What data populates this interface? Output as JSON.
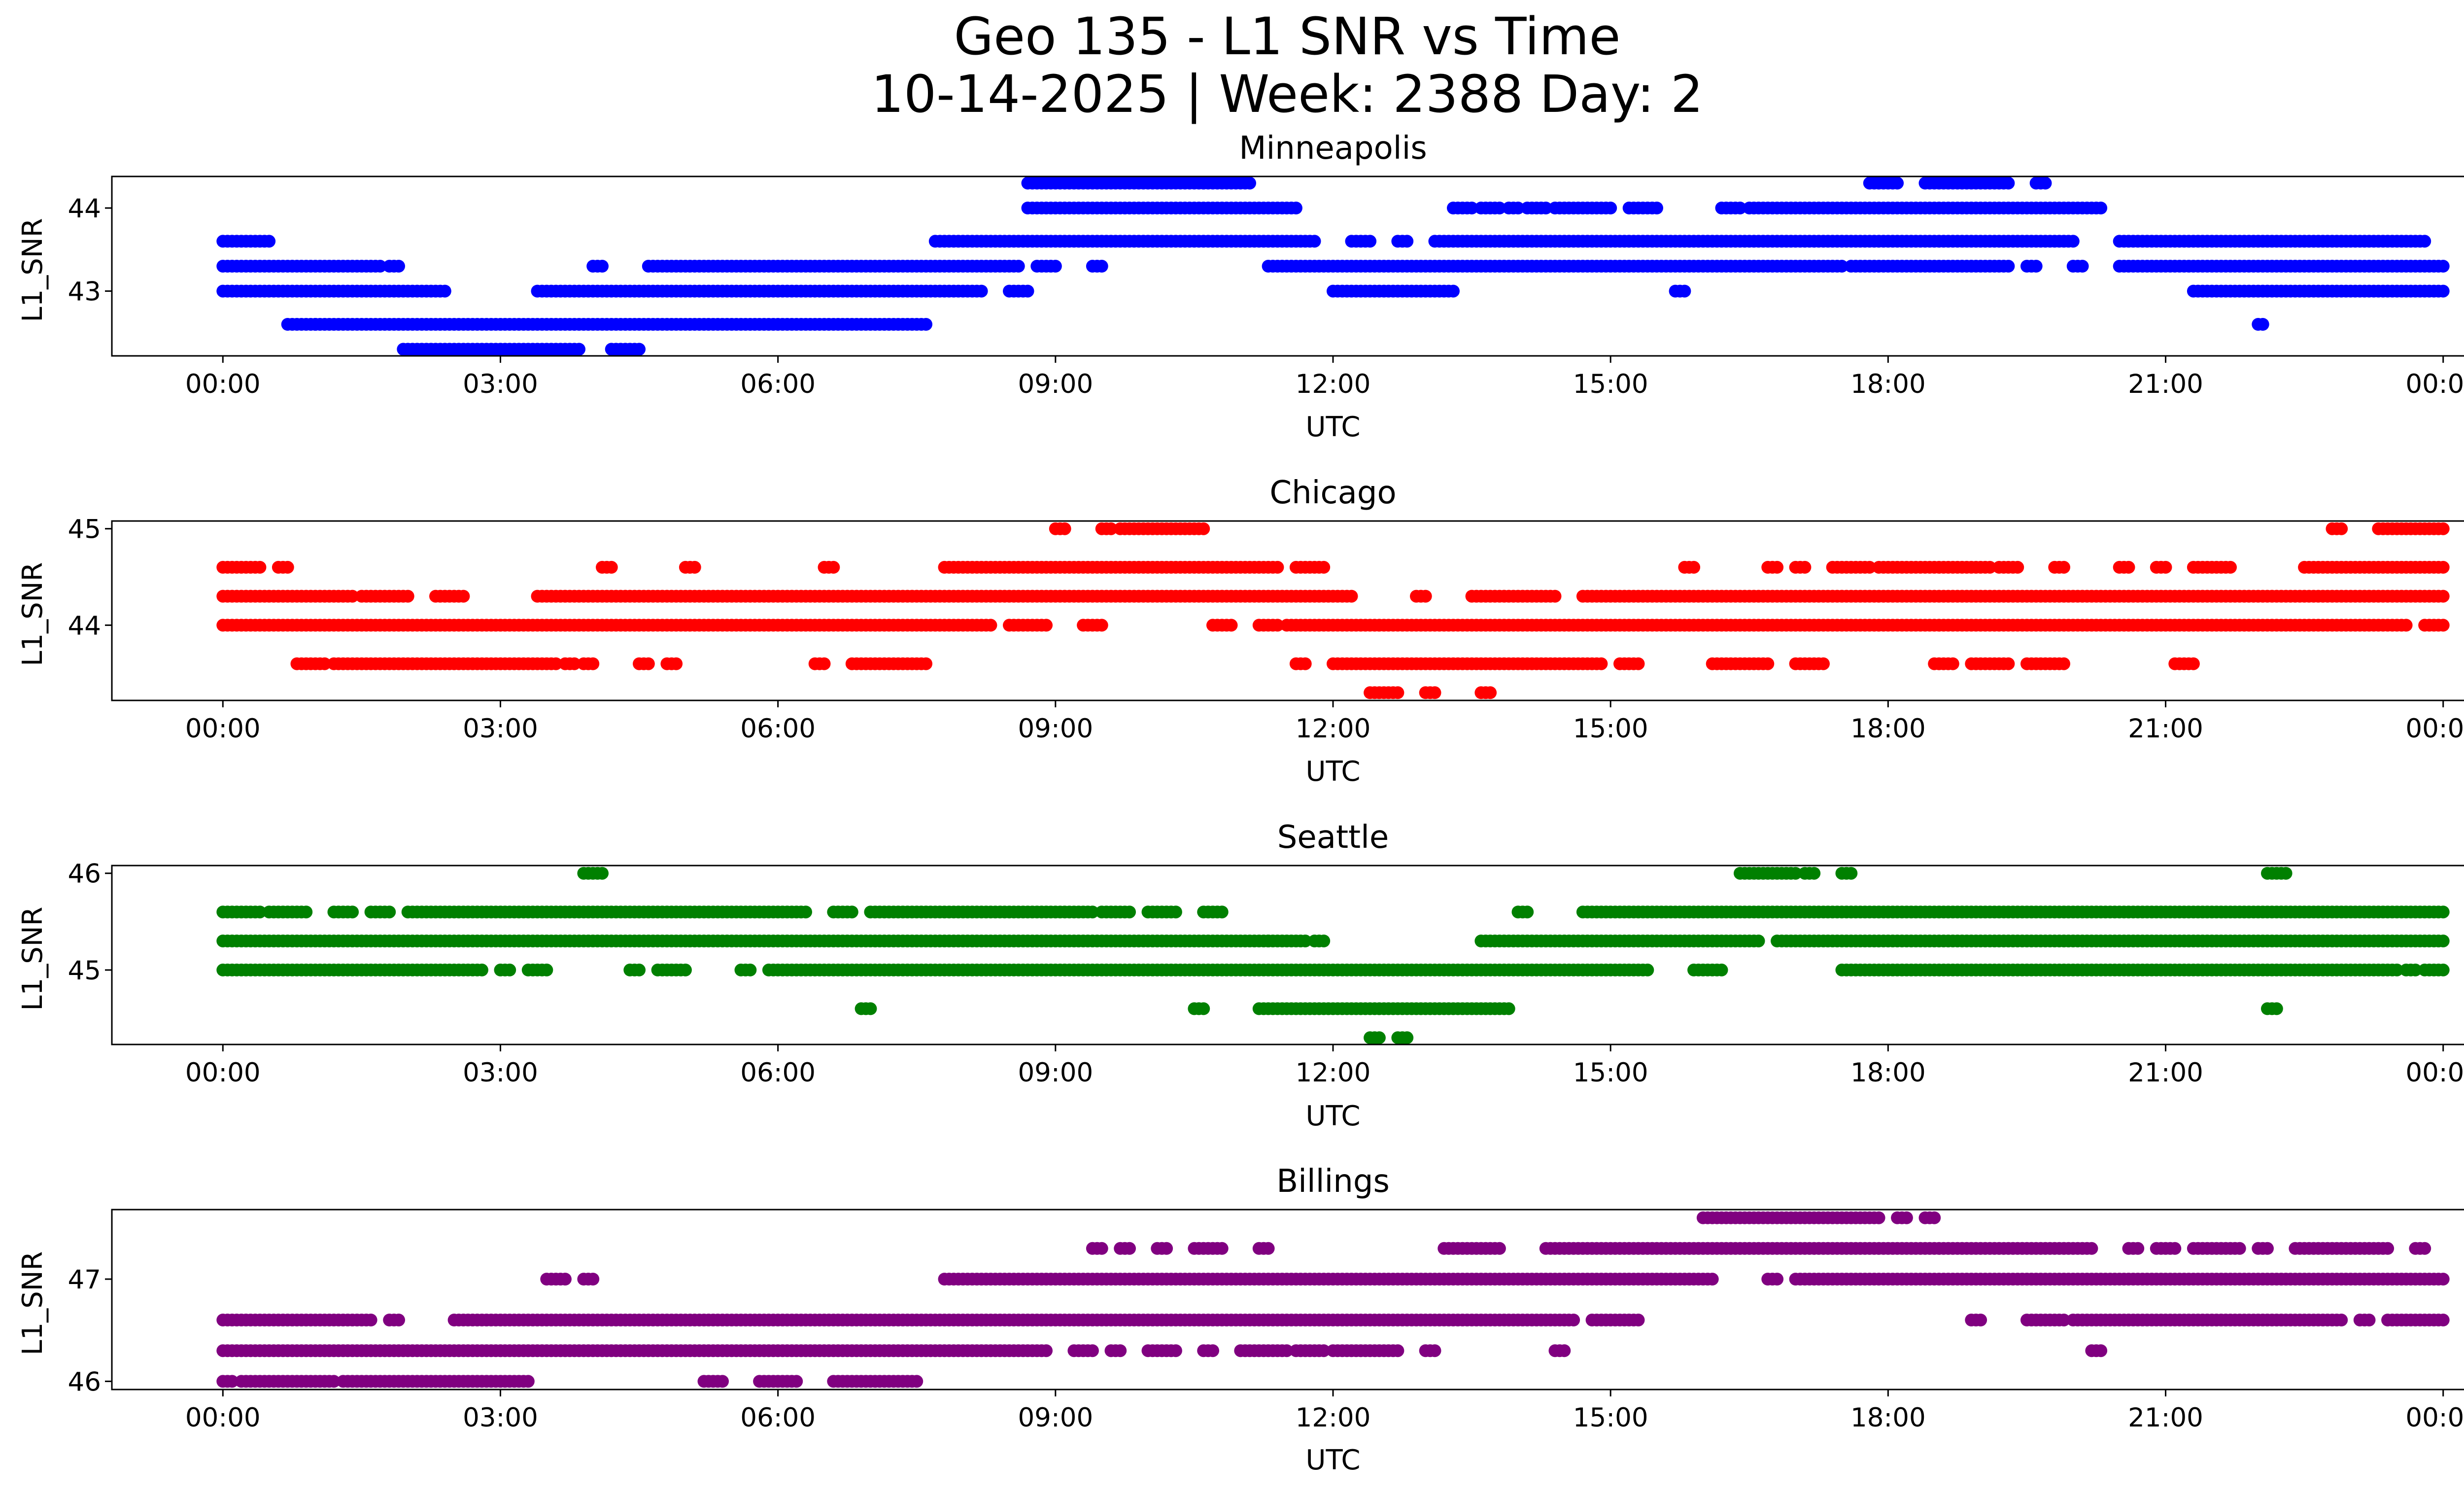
{
  "title": "Geo 135 - L1 SNR vs Time",
  "subtitle": "10-14-2025 | Week: 2388 Day: 2",
  "chart_data": [
    {
      "type": "scatter",
      "title": "Minneapolis",
      "xlabel": "UTC",
      "ylabel": "L1_SNR",
      "xticks": [
        "00:00",
        "03:00",
        "06:00",
        "09:00",
        "12:00",
        "15:00",
        "18:00",
        "21:00",
        "00:00"
      ],
      "xlim_hours": [
        -1.2,
        25.2
      ],
      "yticks": [
        43,
        44
      ],
      "ylim": [
        42.22,
        44.38
      ],
      "color": "#0000ff",
      "levels": [
        {
          "y": 42.3,
          "runs": [
            [
              1.95,
              3.85
            ],
            [
              4.2,
              4.5
            ]
          ]
        },
        {
          "y": 42.6,
          "runs": [
            [
              0.7,
              1.0
            ],
            [
              1.0,
              7.6
            ]
          ]
        },
        {
          "y": 43.0,
          "runs": [
            [
              0.0,
              2.4
            ],
            [
              3.4,
              8.2
            ],
            [
              8.5,
              8.7
            ],
            [
              12.0,
              13.3
            ],
            [
              15.7,
              15.8
            ],
            [
              21.3,
              24.0
            ]
          ]
        },
        {
          "y": 43.3,
          "runs": [
            [
              0.0,
              1.7
            ],
            [
              1.8,
              1.9
            ],
            [
              4.0,
              4.1
            ],
            [
              4.6,
              8.6
            ],
            [
              8.8,
              9.0
            ],
            [
              9.4,
              9.5
            ],
            [
              11.3,
              17.5
            ],
            [
              17.6,
              19.3
            ],
            [
              19.5,
              19.6
            ],
            [
              20.0,
              20.1
            ],
            [
              20.5,
              24.0
            ]
          ]
        },
        {
          "y": 43.6,
          "runs": [
            [
              0.0,
              0.5
            ],
            [
              7.7,
              11.8
            ],
            [
              12.2,
              12.4
            ],
            [
              12.7,
              12.8
            ],
            [
              13.1,
              20.0
            ],
            [
              20.5,
              23.8
            ]
          ]
        },
        {
          "y": 44.0,
          "runs": [
            [
              8.7,
              11.6
            ],
            [
              13.3,
              13.5
            ],
            [
              13.6,
              13.8
            ],
            [
              13.9,
              14.0
            ],
            [
              14.1,
              14.3
            ],
            [
              14.4,
              15.0
            ],
            [
              15.2,
              15.5
            ],
            [
              16.2,
              16.4
            ],
            [
              16.5,
              20.3
            ]
          ]
        },
        {
          "y": 44.3,
          "runs": [
            [
              8.7,
              10.6
            ],
            [
              10.6,
              11.1
            ],
            [
              17.8,
              18.1
            ],
            [
              18.4,
              19.3
            ],
            [
              19.6,
              19.7
            ]
          ]
        },
        {
          "y": 42.6,
          "runs": [
            [
              22.0,
              22.05
            ]
          ]
        }
      ]
    },
    {
      "type": "scatter",
      "title": "Chicago",
      "xlabel": "UTC",
      "ylabel": "L1_SNR",
      "xticks": [
        "00:00",
        "03:00",
        "06:00",
        "09:00",
        "12:00",
        "15:00",
        "18:00",
        "21:00",
        "00:00"
      ],
      "xlim_hours": [
        -1.2,
        25.2
      ],
      "yticks": [
        44,
        45
      ],
      "ylim": [
        43.22,
        45.08
      ],
      "color": "#ff0000",
      "levels": [
        {
          "y": 43.3,
          "runs": [
            [
              12.4,
              12.7
            ],
            [
              13.0,
              13.1
            ],
            [
              13.6,
              13.7
            ]
          ]
        },
        {
          "y": 43.6,
          "runs": [
            [
              0.8,
              1.1
            ],
            [
              1.2,
              3.6
            ],
            [
              3.7,
              3.8
            ],
            [
              3.9,
              4.0
            ],
            [
              4.5,
              4.6
            ],
            [
              4.8,
              4.9
            ],
            [
              6.4,
              6.5
            ],
            [
              6.8,
              7.6
            ],
            [
              11.6,
              11.7
            ],
            [
              12.0,
              14.9
            ],
            [
              15.1,
              15.3
            ],
            [
              16.1,
              16.7
            ],
            [
              17.0,
              17.3
            ],
            [
              18.5,
              18.7
            ],
            [
              18.9,
              19.3
            ],
            [
              19.5,
              19.9
            ],
            [
              21.1,
              21.3
            ]
          ]
        },
        {
          "y": 44.0,
          "runs": [
            [
              0.0,
              8.3
            ],
            [
              8.5,
              8.9
            ],
            [
              9.3,
              9.5
            ],
            [
              10.7,
              10.9
            ],
            [
              11.2,
              11.4
            ],
            [
              11.5,
              23.6
            ],
            [
              23.8,
              24.0
            ]
          ]
        },
        {
          "y": 44.3,
          "runs": [
            [
              0.0,
              1.4
            ],
            [
              1.5,
              2.0
            ],
            [
              2.3,
              2.6
            ],
            [
              3.4,
              12.2
            ]
          ]
        },
        {
          "y": 44.3,
          "runs": [
            [
              12.9,
              13.0
            ],
            [
              13.5,
              14.4
            ],
            [
              14.7,
              24.0
            ]
          ]
        },
        {
          "y": 44.6,
          "runs": [
            [
              0.0,
              0.4
            ],
            [
              0.6,
              0.7
            ],
            [
              4.1,
              4.2
            ],
            [
              5.0,
              5.1
            ],
            [
              6.5,
              6.6
            ],
            [
              7.8,
              11.4
            ],
            [
              11.6,
              11.9
            ],
            [
              15.8,
              15.9
            ],
            [
              16.7,
              16.8
            ],
            [
              17.0,
              17.1
            ],
            [
              17.4,
              17.8
            ],
            [
              17.9,
              19.1
            ],
            [
              19.2,
              19.4
            ],
            [
              19.8,
              19.9
            ],
            [
              20.5,
              20.6
            ],
            [
              20.9,
              21.0
            ],
            [
              21.3,
              21.7
            ],
            [
              22.5,
              24.0
            ]
          ]
        },
        {
          "y": 45.0,
          "runs": [
            [
              9.0,
              9.1
            ],
            [
              9.5,
              9.6
            ],
            [
              9.7,
              10.6
            ],
            [
              22.8,
              22.9
            ],
            [
              23.3,
              24.0
            ]
          ]
        }
      ]
    },
    {
      "type": "scatter",
      "title": "Seattle",
      "xlabel": "UTC",
      "ylabel": "L1_SNR",
      "xticks": [
        "00:00",
        "03:00",
        "06:00",
        "09:00",
        "12:00",
        "15:00",
        "18:00",
        "21:00",
        "00:00"
      ],
      "xlim_hours": [
        -1.2,
        25.2
      ],
      "yticks": [
        45,
        46
      ],
      "ylim": [
        44.23,
        46.08
      ],
      "color": "#008000",
      "levels": [
        {
          "y": 44.3,
          "runs": [
            [
              12.4,
              12.5
            ],
            [
              12.7,
              12.8
            ]
          ]
        },
        {
          "y": 44.6,
          "runs": [
            [
              6.9,
              7.0
            ],
            [
              10.5,
              10.6
            ],
            [
              11.2,
              13.9
            ],
            [
              22.1,
              22.2
            ]
          ]
        },
        {
          "y": 45.0,
          "runs": [
            [
              0.0,
              2.8
            ],
            [
              3.0,
              3.1
            ],
            [
              3.3,
              3.5
            ],
            [
              4.4,
              4.5
            ],
            [
              4.7,
              5.0
            ],
            [
              5.6,
              5.7
            ],
            [
              5.9,
              15.4
            ],
            [
              15.9,
              16.2
            ],
            [
              17.5,
              23.5
            ],
            [
              23.6,
              23.7
            ],
            [
              23.8,
              24.0
            ]
          ]
        },
        {
          "y": 45.3,
          "runs": [
            [
              0.0,
              11.3
            ],
            [
              11.3,
              11.7
            ],
            [
              11.8,
              11.9
            ],
            [
              13.6,
              16.6
            ],
            [
              16.8,
              24.0
            ]
          ]
        },
        {
          "y": 45.6,
          "runs": [
            [
              0.0,
              0.4
            ],
            [
              0.5,
              0.9
            ],
            [
              1.2,
              1.4
            ],
            [
              1.6,
              1.8
            ],
            [
              2.0,
              6.3
            ],
            [
              6.6,
              6.8
            ],
            [
              7.0,
              9.4
            ],
            [
              9.5,
              9.8
            ],
            [
              10.0,
              10.3
            ],
            [
              10.6,
              10.8
            ],
            [
              14.0,
              14.1
            ],
            [
              14.7,
              24.0
            ]
          ]
        },
        {
          "y": 46.0,
          "runs": [
            [
              3.9,
              4.1
            ],
            [
              16.4,
              17.0
            ],
            [
              17.1,
              17.2
            ],
            [
              17.5,
              17.6
            ],
            [
              22.1,
              22.3
            ]
          ]
        }
      ]
    },
    {
      "type": "scatter",
      "title": "Billings",
      "xlabel": "UTC",
      "ylabel": "L1_SNR",
      "xticks": [
        "00:00",
        "03:00",
        "06:00",
        "09:00",
        "12:00",
        "15:00",
        "18:00",
        "21:00",
        "00:00"
      ],
      "xlim_hours": [
        -1.2,
        25.2
      ],
      "yticks": [
        46,
        47
      ],
      "ylim": [
        45.92,
        47.68
      ],
      "color": "#800080",
      "levels": [
        {
          "y": 46.0,
          "runs": [
            [
              0.0,
              0.1
            ],
            [
              0.2,
              1.2
            ],
            [
              1.3,
              3.3
            ],
            [
              5.2,
              5.4
            ],
            [
              5.8,
              6.2
            ],
            [
              6.6,
              7.5
            ]
          ]
        },
        {
          "y": 46.3,
          "runs": [
            [
              0.0,
              8.9
            ],
            [
              9.2,
              9.4
            ],
            [
              9.6,
              9.7
            ],
            [
              10.0,
              10.3
            ],
            [
              10.6,
              10.7
            ],
            [
              11.0,
              11.5
            ],
            [
              11.6,
              11.9
            ],
            [
              12.0,
              12.7
            ],
            [
              13.0,
              13.1
            ],
            [
              14.4,
              14.5
            ],
            [
              20.2,
              20.3
            ]
          ]
        },
        {
          "y": 46.6,
          "runs": [
            [
              0.0,
              1.6
            ],
            [
              1.8,
              1.9
            ],
            [
              2.5,
              14.6
            ],
            [
              14.8,
              15.3
            ],
            [
              18.9,
              19.0
            ],
            [
              19.5,
              19.9
            ],
            [
              20.0,
              22.9
            ],
            [
              23.1,
              23.2
            ],
            [
              23.4,
              24.0
            ]
          ]
        },
        {
          "y": 47.0,
          "runs": [
            [
              3.5,
              3.7
            ],
            [
              3.9,
              4.0
            ],
            [
              7.8,
              16.1
            ],
            [
              16.7,
              16.8
            ],
            [
              17.0,
              24.0
            ]
          ]
        },
        {
          "y": 47.3,
          "runs": [
            [
              9.4,
              9.5
            ],
            [
              9.7,
              9.8
            ],
            [
              10.1,
              10.2
            ],
            [
              10.5,
              10.8
            ],
            [
              11.2,
              11.3
            ],
            [
              13.2,
              13.8
            ],
            [
              14.3,
              20.2
            ],
            [
              20.6,
              20.7
            ],
            [
              20.9,
              21.1
            ],
            [
              21.3,
              21.8
            ],
            [
              22.0,
              22.1
            ],
            [
              22.4,
              23.4
            ],
            [
              23.7,
              23.8
            ]
          ]
        },
        {
          "y": 47.6,
          "runs": [
            [
              16.0,
              17.9
            ],
            [
              18.1,
              18.2
            ],
            [
              18.4,
              18.5
            ]
          ]
        }
      ]
    }
  ]
}
